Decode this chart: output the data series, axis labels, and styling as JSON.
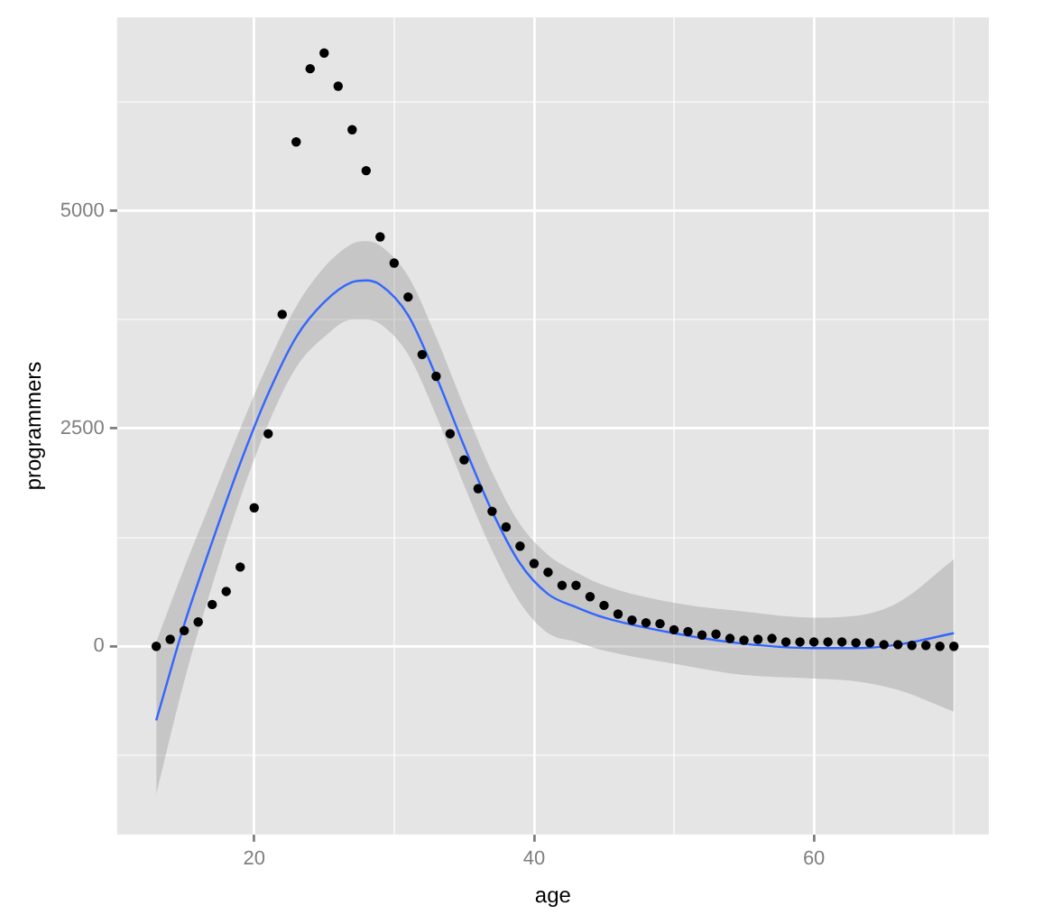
{
  "chart_data": {
    "type": "scatter",
    "xlabel": "age",
    "ylabel": "programmers",
    "xlim": [
      10.2,
      72.5
    ],
    "ylim": [
      -2160,
      7220
    ],
    "xticks": [
      20,
      {
        "value": 30,
        "label": null
      },
      40,
      {
        "value": 50,
        "label": null
      },
      60,
      {
        "value": 70,
        "label": null
      }
    ],
    "yticks": [
      {
        "value": -1250,
        "label": null
      },
      0,
      {
        "value": 1250,
        "label": null
      },
      2500,
      {
        "value": 3750,
        "label": null
      },
      5000,
      {
        "value": 6250,
        "label": null
      }
    ],
    "grid": true,
    "marker": "circle",
    "series": [
      {
        "type": "scatter",
        "color": "#000000",
        "x": [
          13,
          14,
          15,
          16,
          17,
          18,
          19,
          20,
          21,
          22,
          23,
          24,
          25,
          26,
          27,
          28,
          29,
          30,
          31,
          32,
          33,
          34,
          35,
          36,
          37,
          38,
          39,
          40,
          41,
          42,
          43,
          44,
          45,
          46,
          47,
          48,
          49,
          50,
          51,
          52,
          53,
          54,
          55,
          56,
          57,
          58,
          59,
          60,
          61,
          62,
          63,
          64,
          65,
          66,
          67,
          68,
          69,
          70
        ],
        "values": [
          0,
          80,
          180,
          280,
          480,
          630,
          910,
          1590,
          2440,
          3810,
          5790,
          6630,
          6810,
          6430,
          5930,
          5460,
          4700,
          4400,
          4010,
          3350,
          3100,
          2440,
          2140,
          1810,
          1550,
          1370,
          1150,
          950,
          850,
          700,
          700,
          570,
          470,
          370,
          300,
          270,
          260,
          190,
          170,
          130,
          140,
          90,
          70,
          80,
          90,
          50,
          50,
          50,
          50,
          50,
          40,
          40,
          20,
          20,
          10,
          10,
          0,
          0
        ]
      },
      {
        "type": "line",
        "color": "#3366ff",
        "marker": "none",
        "x": [
          13,
          15,
          17,
          19,
          21,
          23,
          25,
          27,
          28,
          29,
          31,
          33,
          35,
          37,
          39,
          41,
          43,
          45,
          50,
          55,
          60,
          63,
          66,
          70
        ],
        "values": [
          -850,
          250,
          1200,
          2100,
          2900,
          3550,
          3950,
          4180,
          4200,
          4150,
          3800,
          3100,
          2300,
          1550,
          950,
          600,
          450,
          330,
          150,
          30,
          -20,
          -20,
          20,
          150
        ],
        "upper": [
          50,
          900,
          1700,
          2500,
          3250,
          3900,
          4350,
          4620,
          4650,
          4600,
          4250,
          3550,
          2750,
          2000,
          1400,
          1050,
          850,
          700,
          500,
          400,
          330,
          350,
          500,
          1000
        ],
        "lower": [
          -1700,
          -400,
          700,
          1700,
          2550,
          3200,
          3550,
          3750,
          3750,
          3700,
          3350,
          2650,
          1850,
          1100,
          500,
          150,
          50,
          -50,
          -200,
          -330,
          -370,
          -400,
          -500,
          -750
        ]
      }
    ]
  }
}
